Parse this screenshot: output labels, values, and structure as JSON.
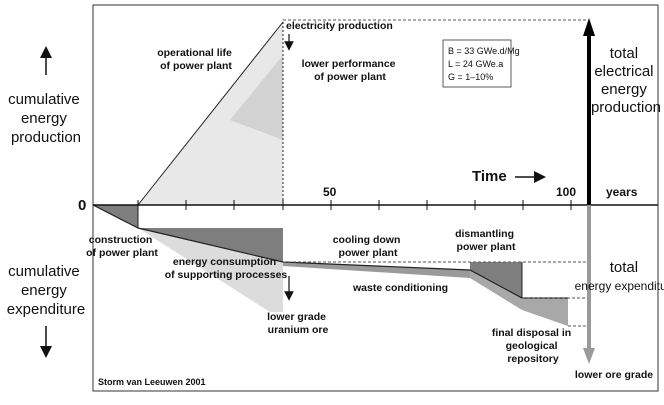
{
  "side_labels": {
    "production": [
      "cumulative",
      "energy",
      "production"
    ],
    "expenditure": [
      "cumulative",
      "energy",
      "expenditure"
    ]
  },
  "axis": {
    "zero": "0",
    "tick_50": "50",
    "tick_100": "100",
    "years": "years",
    "time": "Time"
  },
  "annotations": {
    "operational_life": [
      "operational life",
      "of power plant"
    ],
    "electricity_production": "electricity production",
    "lower_performance": [
      "lower performance",
      "of power plant"
    ],
    "total_production": [
      "total",
      "electrical",
      "energy",
      "production"
    ],
    "construction": [
      "construction",
      "of power plant"
    ],
    "supporting_processes": [
      "energy consumption",
      "of supporting processes"
    ],
    "lower_grade": [
      "lower grade",
      "uranium ore"
    ],
    "cooling_down": [
      "cooling down",
      "power plant"
    ],
    "dismantling": [
      "dismantling",
      "power plant"
    ],
    "waste_conditioning": "waste conditioning",
    "final_disposal": [
      "final disposal in",
      "geological",
      "repository"
    ],
    "total_expenditure": [
      "total",
      "energy expenditure"
    ],
    "lower_ore_grade": "lower ore grade"
  },
  "parameters": {
    "B": "B = 33 GWe.d/Mg",
    "L": "L = 24 GWe.a",
    "G": "G = 1–10%"
  },
  "credit": "Storm van Leeuwen 2001",
  "colors": {
    "light_fill": "#e6e6e6",
    "mid_fill": "#c8c8c8",
    "dark_fill": "#7a7a7a",
    "arrow_black": "#000000",
    "arrow_gray": "#9a9a9a"
  }
}
